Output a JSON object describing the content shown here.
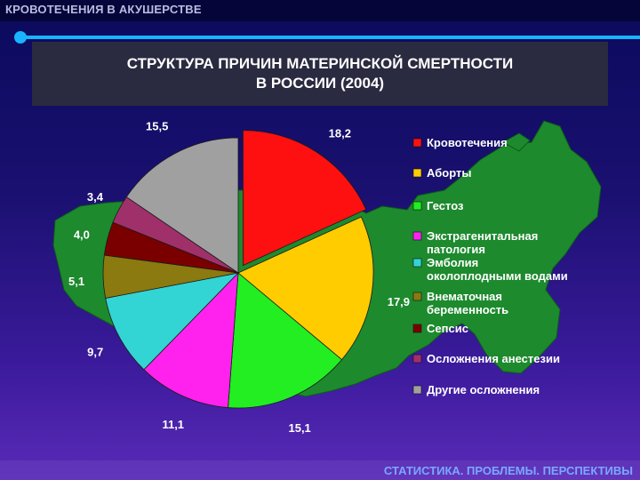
{
  "header": {
    "title": "КРОВОТЕЧЕНИЯ В АКУШЕРСТВЕ"
  },
  "footer": {
    "text": "СТАТИСТИКА. ПРОБЛЕМЫ. ПЕРСПЕКТИВЫ"
  },
  "colors": {
    "accent": "#18b4ff",
    "map": "#1d8a2e"
  },
  "chart_data": {
    "type": "pie",
    "title_lines": [
      "СТРУКТУРА ПРИЧИН МАТЕРИНСКОЙ СМЕРТНОСТИ",
      "В РОССИИ (2004)"
    ],
    "legend_position": "right",
    "slices": [
      {
        "name_lines": [
          "Кровотечения"
        ],
        "value": 18.2,
        "label": "18,2",
        "color": "#ff1010"
      },
      {
        "name_lines": [
          "Аборты"
        ],
        "value": 17.9,
        "label": "17,9",
        "color": "#ffcc00"
      },
      {
        "name_lines": [
          "Гестоз"
        ],
        "value": 15.1,
        "label": "15,1",
        "color": "#22ee22"
      },
      {
        "name_lines": [
          "Экстрагенитальная",
          "патология"
        ],
        "value": 11.1,
        "label": "11,1",
        "color": "#ff22ee"
      },
      {
        "name_lines": [
          "Эмболия",
          "околоплодными водами"
        ],
        "value": 9.7,
        "label": "9,7",
        "color": "#33d4d4"
      },
      {
        "name_lines": [
          "Внематочная",
          "беременность"
        ],
        "value": 5.1,
        "label": "5,1",
        "color": "#8a7a10"
      },
      {
        "name_lines": [
          "Сепсис"
        ],
        "value": 4.0,
        "label": "4,0",
        "color": "#7a0000"
      },
      {
        "name_lines": [
          "Осложнения анестезии"
        ],
        "value": 3.4,
        "label": "3,4",
        "color": "#a0306a"
      },
      {
        "name_lines": [
          "Другие осложнения"
        ],
        "value": 15.5,
        "label": "15,5",
        "color": "#a0a0a0"
      }
    ]
  }
}
